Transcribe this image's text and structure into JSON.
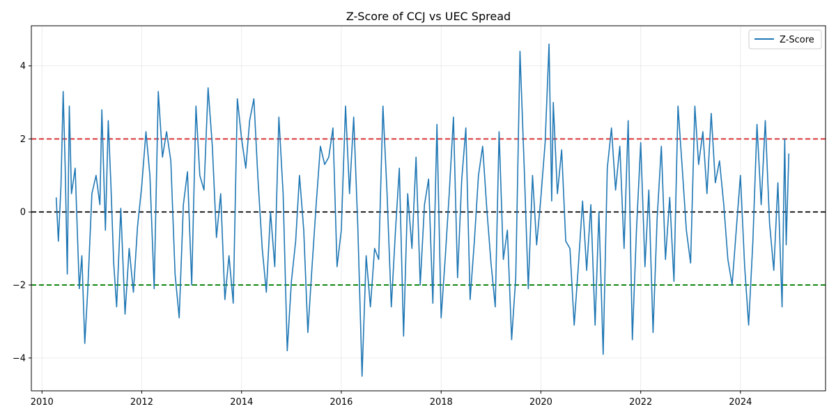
{
  "chart_data": {
    "type": "line",
    "title": "Z-Score of CCJ vs UEC Spread",
    "xlabel": "",
    "ylabel": "",
    "grid": true,
    "legend_position": "top-right",
    "x_range": [
      "2009-10-15",
      "2025-09-15"
    ],
    "y_range": [
      -4.9,
      5.1
    ],
    "x_ticks": [
      "2010",
      "2012",
      "2014",
      "2016",
      "2018",
      "2020",
      "2022",
      "2024"
    ],
    "y_ticks": [
      "−4",
      "−2",
      "0",
      "2",
      "4"
    ],
    "reference_lines": [
      {
        "value": 2,
        "color": "#d62728",
        "style": "dashed"
      },
      {
        "value": 0,
        "color": "#000000",
        "style": "dashed"
      },
      {
        "value": -2,
        "color": "#008000",
        "style": "dashed"
      }
    ],
    "series": [
      {
        "name": "Z-Score",
        "color": "#1f77b4",
        "points": [
          [
            "2010-04-15",
            0.4
          ],
          [
            "2010-05-01",
            -0.8
          ],
          [
            "2010-05-20",
            0.7
          ],
          [
            "2010-06-05",
            3.3
          ],
          [
            "2010-06-20",
            1.2
          ],
          [
            "2010-07-05",
            -1.7
          ],
          [
            "2010-07-20",
            2.9
          ],
          [
            "2010-08-05",
            0.5
          ],
          [
            "2010-09-01",
            1.2
          ],
          [
            "2010-10-01",
            -2.1
          ],
          [
            "2010-10-20",
            -1.2
          ],
          [
            "2010-11-10",
            -3.6
          ],
          [
            "2010-12-01",
            -2.2
          ],
          [
            "2011-01-01",
            0.5
          ],
          [
            "2011-02-01",
            1.0
          ],
          [
            "2011-03-01",
            0.2
          ],
          [
            "2011-03-15",
            2.8
          ],
          [
            "2011-04-10",
            -0.5
          ],
          [
            "2011-05-01",
            2.5
          ],
          [
            "2011-05-20",
            0.8
          ],
          [
            "2011-06-10",
            -1.4
          ],
          [
            "2011-07-01",
            -2.6
          ],
          [
            "2011-08-01",
            0.1
          ],
          [
            "2011-09-01",
            -2.8
          ],
          [
            "2011-10-01",
            -1.0
          ],
          [
            "2011-11-01",
            -2.2
          ],
          [
            "2011-12-01",
            -0.4
          ],
          [
            "2012-01-01",
            0.7
          ],
          [
            "2012-02-01",
            2.2
          ],
          [
            "2012-03-01",
            1.0
          ],
          [
            "2012-04-01",
            -2.1
          ],
          [
            "2012-05-01",
            3.3
          ],
          [
            "2012-06-01",
            1.5
          ],
          [
            "2012-07-01",
            2.2
          ],
          [
            "2012-08-01",
            1.4
          ],
          [
            "2012-09-01",
            -1.7
          ],
          [
            "2012-10-01",
            -2.9
          ],
          [
            "2012-11-01",
            0.2
          ],
          [
            "2012-12-01",
            1.1
          ],
          [
            "2013-01-01",
            -2.0
          ],
          [
            "2013-02-01",
            2.9
          ],
          [
            "2013-03-01",
            1.0
          ],
          [
            "2013-04-01",
            0.6
          ],
          [
            "2013-05-01",
            3.4
          ],
          [
            "2013-06-01",
            1.8
          ],
          [
            "2013-07-01",
            -0.7
          ],
          [
            "2013-08-01",
            0.5
          ],
          [
            "2013-09-01",
            -2.4
          ],
          [
            "2013-10-01",
            -1.2
          ],
          [
            "2013-11-01",
            -2.5
          ],
          [
            "2013-12-01",
            3.1
          ],
          [
            "2014-01-01",
            2.0
          ],
          [
            "2014-02-01",
            1.2
          ],
          [
            "2014-03-01",
            2.5
          ],
          [
            "2014-04-01",
            3.1
          ],
          [
            "2014-05-01",
            0.9
          ],
          [
            "2014-06-01",
            -1.0
          ],
          [
            "2014-07-01",
            -2.2
          ],
          [
            "2014-08-01",
            0.0
          ],
          [
            "2014-09-01",
            -1.5
          ],
          [
            "2014-10-01",
            2.6
          ],
          [
            "2014-11-01",
            0.5
          ],
          [
            "2014-12-01",
            -3.8
          ],
          [
            "2015-01-01",
            -1.9
          ],
          [
            "2015-02-01",
            -0.8
          ],
          [
            "2015-03-01",
            1.0
          ],
          [
            "2015-04-01",
            -0.5
          ],
          [
            "2015-05-01",
            -3.3
          ],
          [
            "2015-06-01",
            -1.5
          ],
          [
            "2015-07-01",
            0.2
          ],
          [
            "2015-08-01",
            1.8
          ],
          [
            "2015-09-01",
            1.3
          ],
          [
            "2015-10-01",
            1.5
          ],
          [
            "2015-11-01",
            2.3
          ],
          [
            "2015-12-01",
            -1.5
          ],
          [
            "2016-01-01",
            -0.5
          ],
          [
            "2016-02-01",
            2.9
          ],
          [
            "2016-03-01",
            0.5
          ],
          [
            "2016-04-01",
            2.6
          ],
          [
            "2016-05-01",
            -0.4
          ],
          [
            "2016-06-01",
            -4.5
          ],
          [
            "2016-07-01",
            -1.2
          ],
          [
            "2016-08-01",
            -2.6
          ],
          [
            "2016-09-01",
            -1.0
          ],
          [
            "2016-10-01",
            -1.3
          ],
          [
            "2016-11-01",
            2.9
          ],
          [
            "2016-12-01",
            0.5
          ],
          [
            "2017-01-01",
            -2.6
          ],
          [
            "2017-02-01",
            -0.5
          ],
          [
            "2017-03-01",
            1.2
          ],
          [
            "2017-04-01",
            -3.4
          ],
          [
            "2017-05-01",
            0.5
          ],
          [
            "2017-06-01",
            -1.0
          ],
          [
            "2017-07-01",
            1.5
          ],
          [
            "2017-08-01",
            -2.0
          ],
          [
            "2017-09-01",
            0.2
          ],
          [
            "2017-10-01",
            0.9
          ],
          [
            "2017-11-01",
            -2.5
          ],
          [
            "2017-12-01",
            2.4
          ],
          [
            "2018-01-01",
            -2.9
          ],
          [
            "2018-02-01",
            -1.2
          ],
          [
            "2018-03-01",
            0.5
          ],
          [
            "2018-04-01",
            2.6
          ],
          [
            "2018-05-01",
            -1.8
          ],
          [
            "2018-06-01",
            0.9
          ],
          [
            "2018-07-01",
            2.3
          ],
          [
            "2018-08-01",
            -2.4
          ],
          [
            "2018-09-01",
            -0.8
          ],
          [
            "2018-10-01",
            1.0
          ],
          [
            "2018-11-01",
            1.8
          ],
          [
            "2018-12-01",
            0.1
          ],
          [
            "2019-01-01",
            -1.4
          ],
          [
            "2019-02-01",
            -2.6
          ],
          [
            "2019-03-01",
            2.2
          ],
          [
            "2019-04-01",
            -1.3
          ],
          [
            "2019-05-01",
            -0.5
          ],
          [
            "2019-06-01",
            -3.5
          ],
          [
            "2019-07-01",
            -1.8
          ],
          [
            "2019-08-01",
            4.4
          ],
          [
            "2019-09-01",
            1.2
          ],
          [
            "2019-10-01",
            -2.1
          ],
          [
            "2019-11-01",
            1.0
          ],
          [
            "2019-12-01",
            -0.9
          ],
          [
            "2020-01-01",
            0.4
          ],
          [
            "2020-02-01",
            1.9
          ],
          [
            "2020-03-01",
            4.6
          ],
          [
            "2020-03-20",
            0.3
          ],
          [
            "2020-04-01",
            3.0
          ],
          [
            "2020-05-01",
            0.5
          ],
          [
            "2020-06-01",
            1.7
          ],
          [
            "2020-07-01",
            -0.8
          ],
          [
            "2020-08-01",
            -1.0
          ],
          [
            "2020-09-01",
            -3.1
          ],
          [
            "2020-10-01",
            -1.5
          ],
          [
            "2020-11-01",
            0.3
          ],
          [
            "2020-12-01",
            -1.6
          ],
          [
            "2021-01-01",
            0.2
          ],
          [
            "2021-02-01",
            -3.1
          ],
          [
            "2021-03-01",
            0.0
          ],
          [
            "2021-04-01",
            -3.9
          ],
          [
            "2021-05-01",
            1.2
          ],
          [
            "2021-06-01",
            2.3
          ],
          [
            "2021-07-01",
            0.6
          ],
          [
            "2021-08-01",
            1.8
          ],
          [
            "2021-09-01",
            -1.0
          ],
          [
            "2021-10-01",
            2.5
          ],
          [
            "2021-11-01",
            -3.5
          ],
          [
            "2021-12-01",
            -0.5
          ],
          [
            "2022-01-01",
            1.9
          ],
          [
            "2022-02-01",
            -1.5
          ],
          [
            "2022-03-01",
            0.6
          ],
          [
            "2022-04-01",
            -3.3
          ],
          [
            "2022-05-01",
            -0.2
          ],
          [
            "2022-06-01",
            1.8
          ],
          [
            "2022-07-01",
            -1.3
          ],
          [
            "2022-08-01",
            0.4
          ],
          [
            "2022-09-01",
            -1.9
          ],
          [
            "2022-10-01",
            2.9
          ],
          [
            "2022-11-01",
            1.2
          ],
          [
            "2022-12-01",
            -0.5
          ],
          [
            "2023-01-01",
            -1.4
          ],
          [
            "2023-02-01",
            2.9
          ],
          [
            "2023-03-01",
            1.3
          ],
          [
            "2023-04-01",
            2.2
          ],
          [
            "2023-05-01",
            0.5
          ],
          [
            "2023-06-01",
            2.7
          ],
          [
            "2023-07-01",
            0.8
          ],
          [
            "2023-08-01",
            1.4
          ],
          [
            "2023-09-01",
            0.2
          ],
          [
            "2023-10-01",
            -1.3
          ],
          [
            "2023-11-01",
            -2.0
          ],
          [
            "2023-12-01",
            -0.5
          ],
          [
            "2024-01-01",
            1.0
          ],
          [
            "2024-02-01",
            -1.5
          ],
          [
            "2024-03-01",
            -3.1
          ],
          [
            "2024-04-01",
            -0.8
          ],
          [
            "2024-05-01",
            2.4
          ],
          [
            "2024-06-01",
            0.2
          ],
          [
            "2024-07-01",
            2.5
          ],
          [
            "2024-08-01",
            -0.3
          ],
          [
            "2024-09-01",
            -1.6
          ],
          [
            "2024-10-01",
            0.8
          ],
          [
            "2024-11-01",
            -2.6
          ],
          [
            "2024-11-20",
            2.0
          ],
          [
            "2024-12-01",
            -0.9
          ],
          [
            "2024-12-20",
            1.6
          ]
        ]
      }
    ]
  }
}
